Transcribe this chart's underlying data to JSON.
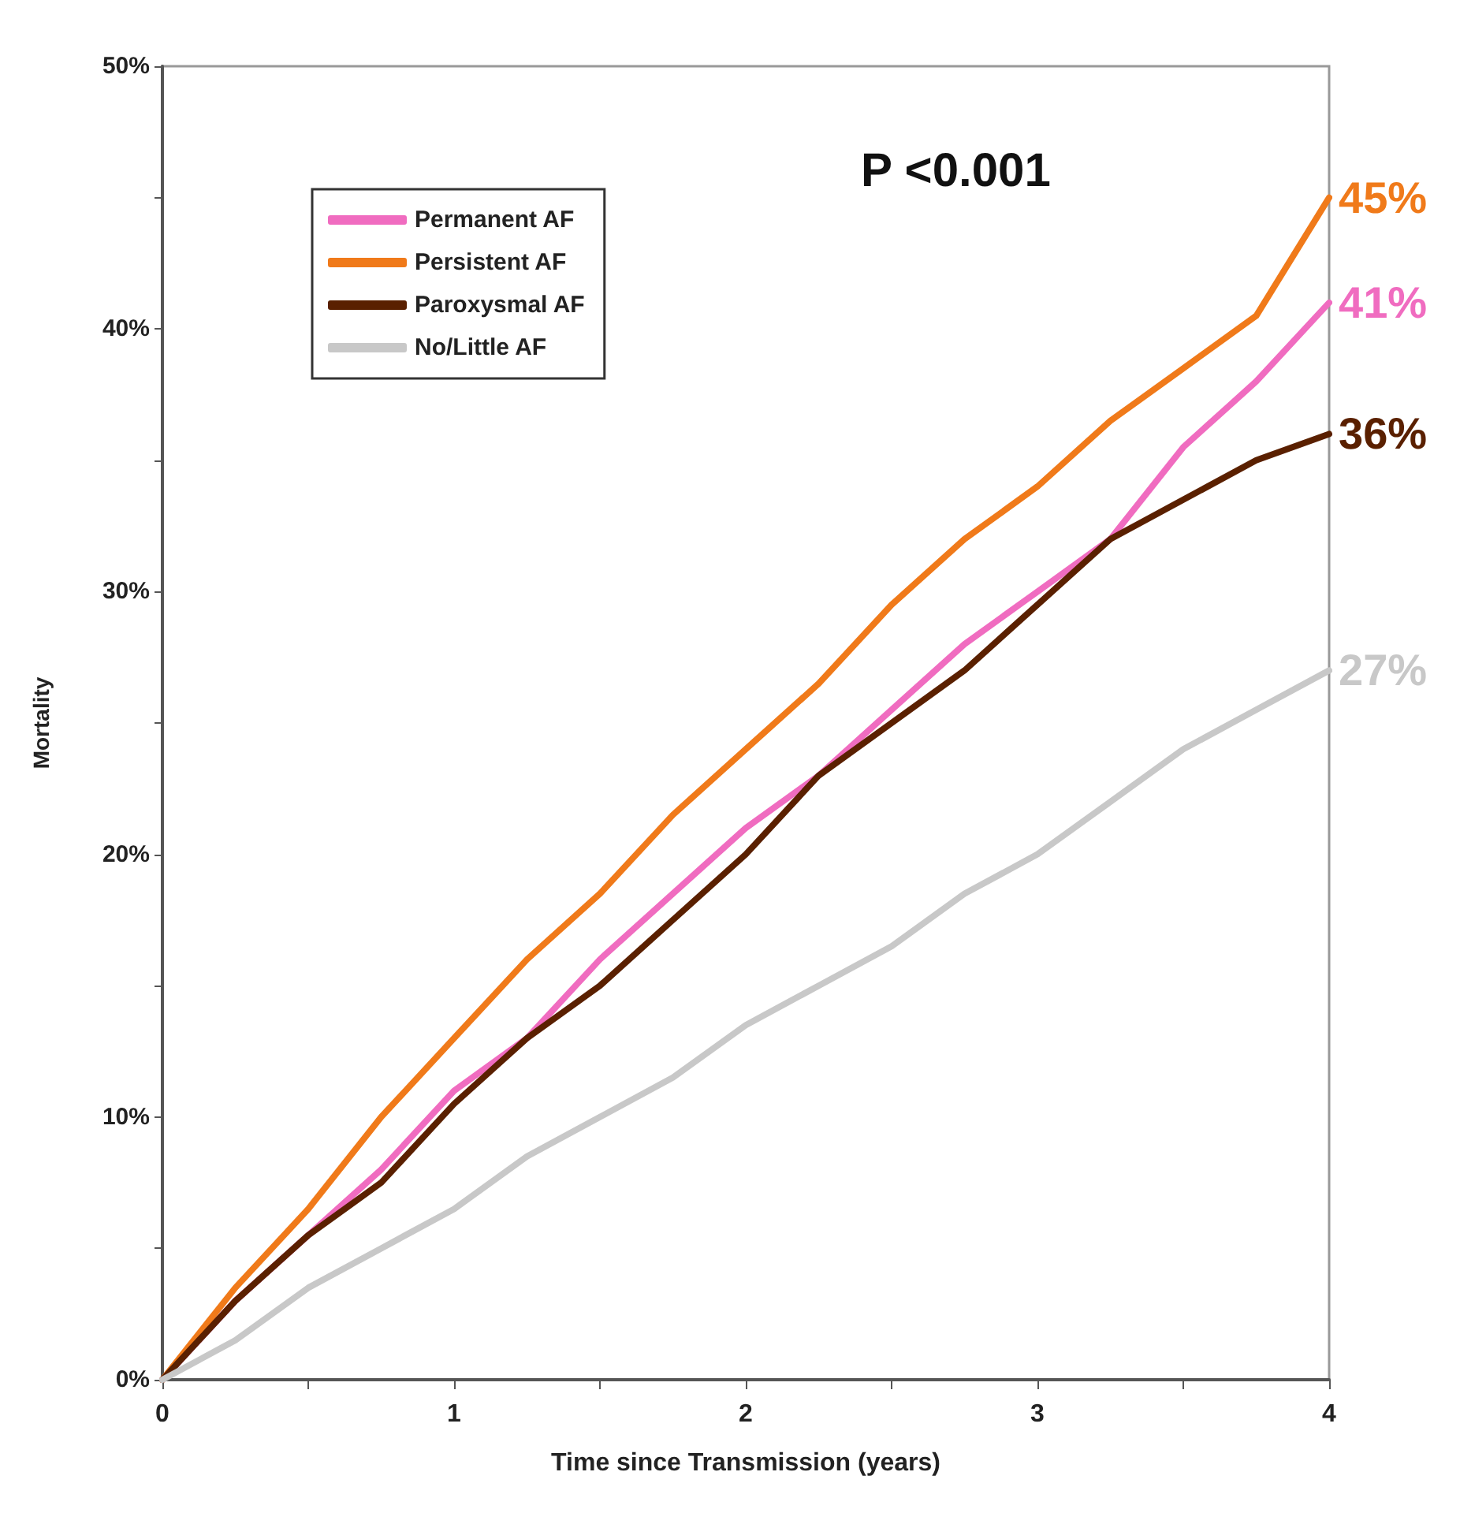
{
  "chart_data": {
    "type": "line",
    "xlabel": "Time since Transmission (years)",
    "ylabel": "Mortality",
    "x": [
      0,
      0.25,
      0.5,
      0.75,
      1,
      1.25,
      1.5,
      1.75,
      2,
      2.25,
      2.5,
      2.75,
      3,
      3.25,
      3.5,
      3.75,
      4
    ],
    "series": [
      {
        "name": "Permanent AF",
        "color": "#f06cc0",
        "values": [
          0,
          3,
          5.5,
          8,
          11,
          13,
          16,
          18.5,
          21,
          23,
          25.5,
          28,
          30,
          32,
          35.5,
          38,
          41
        ],
        "value_labels": [
          null,
          null,
          null,
          null,
          null,
          null,
          null,
          null,
          null,
          null,
          null,
          null,
          null,
          null,
          null,
          null,
          "41%"
        ]
      },
      {
        "name": "Persistent AF",
        "color": "#f07a1a",
        "values": [
          0,
          3.5,
          6.5,
          10,
          13,
          16,
          18.5,
          21.5,
          24,
          26.5,
          29.5,
          32,
          34,
          36.5,
          38.5,
          40.5,
          45
        ],
        "value_labels": [
          null,
          null,
          null,
          null,
          null,
          null,
          null,
          null,
          null,
          null,
          null,
          null,
          null,
          null,
          null,
          null,
          "45%"
        ]
      },
      {
        "name": "Paroxysmal AF",
        "color": "#5a2000",
        "values": [
          0,
          3,
          5.5,
          7.5,
          10.5,
          13,
          15,
          17.5,
          20,
          23,
          25,
          27,
          29.5,
          32,
          33.5,
          35,
          36
        ],
        "value_labels": [
          null,
          null,
          null,
          null,
          null,
          null,
          null,
          null,
          null,
          null,
          null,
          null,
          null,
          null,
          null,
          null,
          "36%"
        ]
      },
      {
        "name": "No/Little AF",
        "color": "#c8c8c8",
        "values": [
          0,
          1.5,
          3.5,
          5,
          6.5,
          8.5,
          10,
          11.5,
          13.5,
          15,
          16.5,
          18.5,
          20,
          22,
          24,
          25.5,
          27
        ],
        "value_labels": [
          null,
          null,
          null,
          null,
          null,
          null,
          null,
          null,
          null,
          null,
          null,
          null,
          null,
          null,
          null,
          null,
          "27%"
        ]
      }
    ],
    "annotations": [
      "P <0.001"
    ],
    "xlim": [
      0,
      4
    ],
    "xticks": [
      0,
      {
        "value": 0.5,
        "label": null
      },
      1,
      {
        "value": 1.5,
        "label": null
      },
      2,
      {
        "value": 2.5,
        "label": null
      },
      3,
      {
        "value": 3.5,
        "label": null
      },
      4
    ],
    "ylim": [
      0,
      50
    ],
    "yticks": [
      {
        "value": 0,
        "label": "0%"
      },
      {
        "value": 5,
        "label": null
      },
      {
        "value": 10,
        "label": "10%"
      },
      {
        "value": 15,
        "label": null
      },
      {
        "value": 20,
        "label": "20%"
      },
      {
        "value": 25,
        "label": null
      },
      {
        "value": 30,
        "label": "30%"
      },
      {
        "value": 35,
        "label": null
      },
      {
        "value": 40,
        "label": "40%"
      },
      {
        "value": 45,
        "label": null
      },
      {
        "value": 50,
        "label": "50%"
      }
    ],
    "grid": false,
    "legend": "top left",
    "marker": "none",
    "line_style": "solid"
  }
}
